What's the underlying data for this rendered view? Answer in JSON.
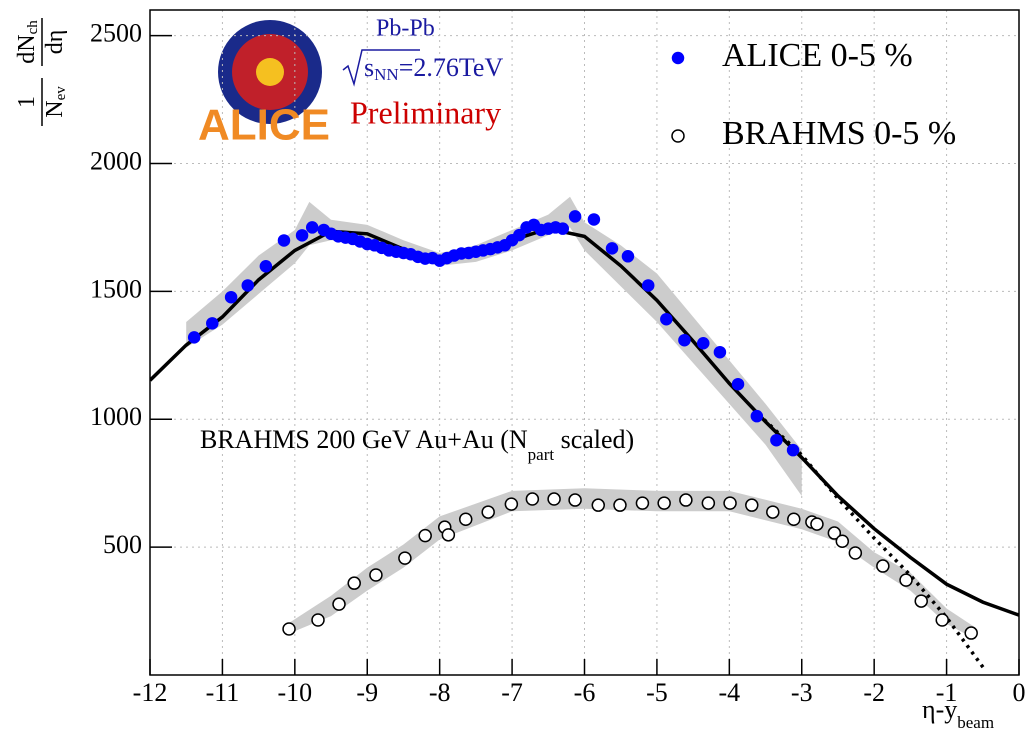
{
  "chart_data": {
    "type": "scatter",
    "title_lines": {
      "system": "Pb-Pb",
      "energy": {
        "base": "s",
        "sub": "NN",
        "rest": "=2.76TeV"
      },
      "status": "Preliminary",
      "logo_text": "ALICE"
    },
    "annotation": {
      "text": "BRAHMS 200 GeV Au+Au (N",
      "sub": "part",
      "rest": " scaled)"
    },
    "x_label": {
      "text": "η-y",
      "sub": "beam"
    },
    "y_label": {
      "num1": "1",
      "den1": "N",
      "den1_sub": "ev",
      "num2": "dN",
      "num2_sub": "ch",
      "den2": "dη"
    },
    "xlim": [
      -12,
      0
    ],
    "ylim": [
      0,
      2600
    ],
    "xticks": [
      -12,
      -11,
      -10,
      -9,
      -8,
      -7,
      -6,
      -5,
      -4,
      -3,
      -2,
      -1,
      0
    ],
    "yticks": [
      500,
      1000,
      1500,
      2000,
      2500
    ],
    "grid": true,
    "series": [
      {
        "name": "ALICE 0-5 %",
        "color": "#0000ff",
        "marker": "filled",
        "x": [
          -11.39,
          -11.14,
          -10.88,
          -10.65,
          -10.4,
          -10.15,
          -9.9,
          -9.76,
          -9.6,
          -9.5,
          -9.4,
          -9.3,
          -9.2,
          -9.1,
          -9.0,
          -8.9,
          -8.8,
          -8.7,
          -8.6,
          -8.5,
          -8.4,
          -8.3,
          -8.2,
          -8.1,
          -8.0,
          -7.9,
          -7.8,
          -7.7,
          -7.6,
          -7.5,
          -7.4,
          -7.3,
          -7.2,
          -7.1,
          -7.0,
          -6.9,
          -6.8,
          -6.7,
          -6.6,
          -6.5,
          -6.4,
          -6.3,
          -6.13,
          -5.87,
          -5.62,
          -5.4,
          -5.12,
          -4.87,
          -4.62,
          -4.36,
          -4.13,
          -3.88,
          -3.62,
          -3.35,
          -3.12
        ],
        "values": [
          1320,
          1375,
          1477,
          1523,
          1598,
          1699,
          1719,
          1750,
          1740,
          1725,
          1715,
          1710,
          1705,
          1695,
          1685,
          1680,
          1670,
          1660,
          1655,
          1650,
          1645,
          1635,
          1628,
          1630,
          1620,
          1630,
          1640,
          1648,
          1650,
          1655,
          1660,
          1665,
          1672,
          1680,
          1700,
          1720,
          1750,
          1760,
          1740,
          1745,
          1750,
          1745,
          1793,
          1781,
          1668,
          1637,
          1523,
          1391,
          1309,
          1297,
          1262,
          1137,
          1012,
          918,
          879
        ]
      },
      {
        "name": "BRAHMS 0-5 %",
        "color": "#000000",
        "marker": "open",
        "x": [
          -10.08,
          -9.68,
          -9.39,
          -9.18,
          -8.88,
          -8.48,
          -8.2,
          -7.93,
          -7.88,
          -7.64,
          -7.33,
          -7.01,
          -6.72,
          -6.42,
          -6.13,
          -5.81,
          -5.51,
          -5.2,
          -4.9,
          -4.6,
          -4.29,
          -3.99,
          -3.69,
          -3.4,
          -3.11,
          -2.86,
          -2.79,
          -2.55,
          -2.44,
          -2.26,
          -1.88,
          -1.56,
          -1.35,
          -1.06,
          -0.66
        ],
        "values": [
          180,
          215,
          277,
          359,
          391,
          457,
          545,
          578,
          548,
          609,
          637,
          668,
          688,
          688,
          684,
          664,
          664,
          672,
          672,
          684,
          672,
          672,
          664,
          637,
          609,
          598,
          590,
          555,
          523,
          477,
          426,
          371,
          289,
          215,
          164
        ]
      }
    ],
    "curves": [
      {
        "style": "solid",
        "color": "#000000",
        "x": [
          -12,
          -11.5,
          -11,
          -10.5,
          -10,
          -9.5,
          -9,
          -8.5,
          -8,
          -7.5,
          -7,
          -6.5,
          -6,
          -5.5,
          -5,
          -4.5,
          -4,
          -3.5,
          -3,
          -2.5,
          -2,
          -1.5,
          -1,
          -0.5,
          0
        ],
        "values": [
          1152,
          1290,
          1400,
          1545,
          1660,
          1735,
          1725,
          1665,
          1625,
          1645,
          1700,
          1745,
          1715,
          1600,
          1465,
          1305,
          1140,
          990,
          850,
          700,
          572,
          460,
          355,
          285,
          234
        ]
      },
      {
        "style": "dotted",
        "color": "#000000",
        "x": [
          -3.6,
          -3,
          -2.5,
          -2,
          -1.5,
          -1,
          -0.47
        ],
        "values": [
          1020,
          860,
          690,
          535,
          390,
          225,
          20
        ]
      }
    ],
    "bands": [
      {
        "color": "#cccccc",
        "x": [
          -11.5,
          -11,
          -10.5,
          -10,
          -9.8,
          -9.5,
          -9,
          -8.5,
          -8,
          -7.5,
          -7,
          -6.5,
          -6.2,
          -6,
          -5.5,
          -5,
          -4.5,
          -4,
          -3.5,
          -3
        ],
        "lower": [
          1280,
          1370,
          1490,
          1610,
          1680,
          1700,
          1690,
          1630,
          1600,
          1615,
          1660,
          1720,
          1750,
          1660,
          1520,
          1380,
          1220,
          1060,
          900,
          700
        ],
        "upper": [
          1380,
          1500,
          1640,
          1740,
          1850,
          1780,
          1760,
          1700,
          1650,
          1680,
          1740,
          1800,
          1870,
          1770,
          1680,
          1570,
          1400,
          1230,
          1060,
          880
        ]
      },
      {
        "color": "#cccccc",
        "x": [
          -10.1,
          -9.5,
          -9,
          -8.5,
          -8,
          -7,
          -6,
          -5,
          -4,
          -3,
          -2.5,
          -2,
          -1.5,
          -1,
          -0.6
        ],
        "lower": [
          160,
          230,
          330,
          420,
          530,
          640,
          650,
          640,
          640,
          570,
          520,
          420,
          330,
          200,
          140
        ],
        "upper": [
          200,
          310,
          420,
          510,
          620,
          720,
          730,
          720,
          720,
          650,
          600,
          480,
          400,
          260,
          185
        ]
      }
    ]
  }
}
